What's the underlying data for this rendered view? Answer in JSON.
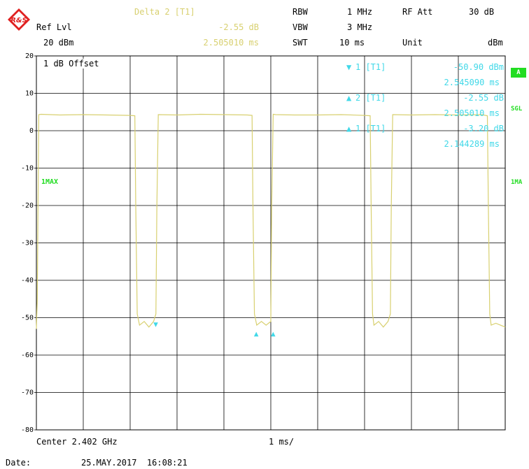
{
  "header": {
    "logo_text": "R&S",
    "delta_label": "Delta 2 [T1]",
    "rbw_label": "RBW",
    "rbw_value": "1 MHz",
    "rfatt_label": "RF Att",
    "rfatt_value": "30 dB",
    "reflvl_label": "Ref Lvl",
    "delta_db": "-2.55 dB",
    "vbw_label": "VBW",
    "vbw_value": "3 MHz",
    "reflvl_value": "20 dBm",
    "delta_time": "2.505010 ms",
    "swt_label": "SWT",
    "swt_value": "10 ms",
    "unit_label": "Unit",
    "unit_value": "dBm"
  },
  "plot": {
    "offset_label": "1 dB Offset",
    "trace_label": "1MAX",
    "right_badges": {
      "a": "A",
      "sgl": "SGL",
      "trace": "1MA"
    }
  },
  "markers": [
    {
      "symbol": "▼",
      "label": "1 [T1]",
      "value": "-50.90 dBm",
      "time": "2.545090 ms"
    },
    {
      "symbol": "▲",
      "label": "2 [T1]",
      "value": "-2.55 dB",
      "time": "2.505010 ms"
    },
    {
      "symbol": "▲",
      "label": "1 [T1]",
      "value": "-3.20 dB",
      "time": "2.144289 ms"
    }
  ],
  "footer": {
    "center_label": "Center 2.402 GHz",
    "div_label": "1 ms/",
    "date_label": "Date:",
    "date_value": "25.MAY.2017  16:08:21"
  },
  "chart_data": {
    "type": "line",
    "x_unit": "ms",
    "xlim": [
      0,
      10
    ],
    "ylim": [
      -80,
      20
    ],
    "y_ticks": [
      "20",
      "10",
      "0",
      "-10",
      "-20",
      "-30",
      "-40",
      "-50",
      "-60",
      "-70",
      "-80"
    ],
    "grid": true,
    "colors": {
      "trace": "#d8d070",
      "marker": "#40d8e8",
      "badge": "#22dd22",
      "grid": "#000000"
    },
    "series": [
      {
        "x": [
          0,
          0.02,
          0.05,
          0.1,
          0.5,
          1.0,
          1.5,
          2.0,
          2.1,
          2.12,
          2.15,
          2.2,
          2.3,
          2.4,
          2.5,
          2.55,
          2.57,
          2.6,
          3.0,
          3.5,
          4.0,
          4.5,
          4.6,
          4.62,
          4.65,
          4.7,
          4.8,
          4.9,
          5.0,
          5.02,
          5.05,
          5.1,
          5.5,
          6.0,
          6.5,
          7.0,
          7.12,
          7.14,
          7.17,
          7.2,
          7.3,
          7.4,
          7.5,
          7.55,
          7.57,
          7.6,
          8.0,
          8.5,
          9.0,
          9.5,
          9.62,
          9.64,
          9.67,
          9.7,
          9.8,
          9.9,
          10.0
        ],
        "y": [
          -53,
          -45,
          4.3,
          4.4,
          4.2,
          4.3,
          4.2,
          4.1,
          4.0,
          -20,
          -49,
          -52,
          -51,
          -52.5,
          -51,
          -49,
          -20,
          4.3,
          4.2,
          4.4,
          4.3,
          4.2,
          4.1,
          -20,
          -49,
          -52,
          -51,
          -52,
          -51,
          -20,
          4.4,
          4.3,
          4.2,
          4.2,
          4.3,
          4.1,
          4.0,
          -20,
          -49,
          -52,
          -51,
          -52.5,
          -51,
          -49,
          -20,
          4.3,
          4.2,
          4.3,
          4.2,
          4.3,
          4.0,
          -20,
          -49,
          -52,
          -51.5,
          -52,
          -52.5
        ]
      }
    ],
    "marker_points": [
      {
        "id": "1",
        "symbol": "▼",
        "x": 2.545,
        "y": -50.9
      },
      {
        "id": "2",
        "symbol": "▲",
        "x": 5.05,
        "y": -53.5
      },
      {
        "id": "1r",
        "symbol": "▲",
        "x": 4.69,
        "y": -53.5
      }
    ]
  }
}
